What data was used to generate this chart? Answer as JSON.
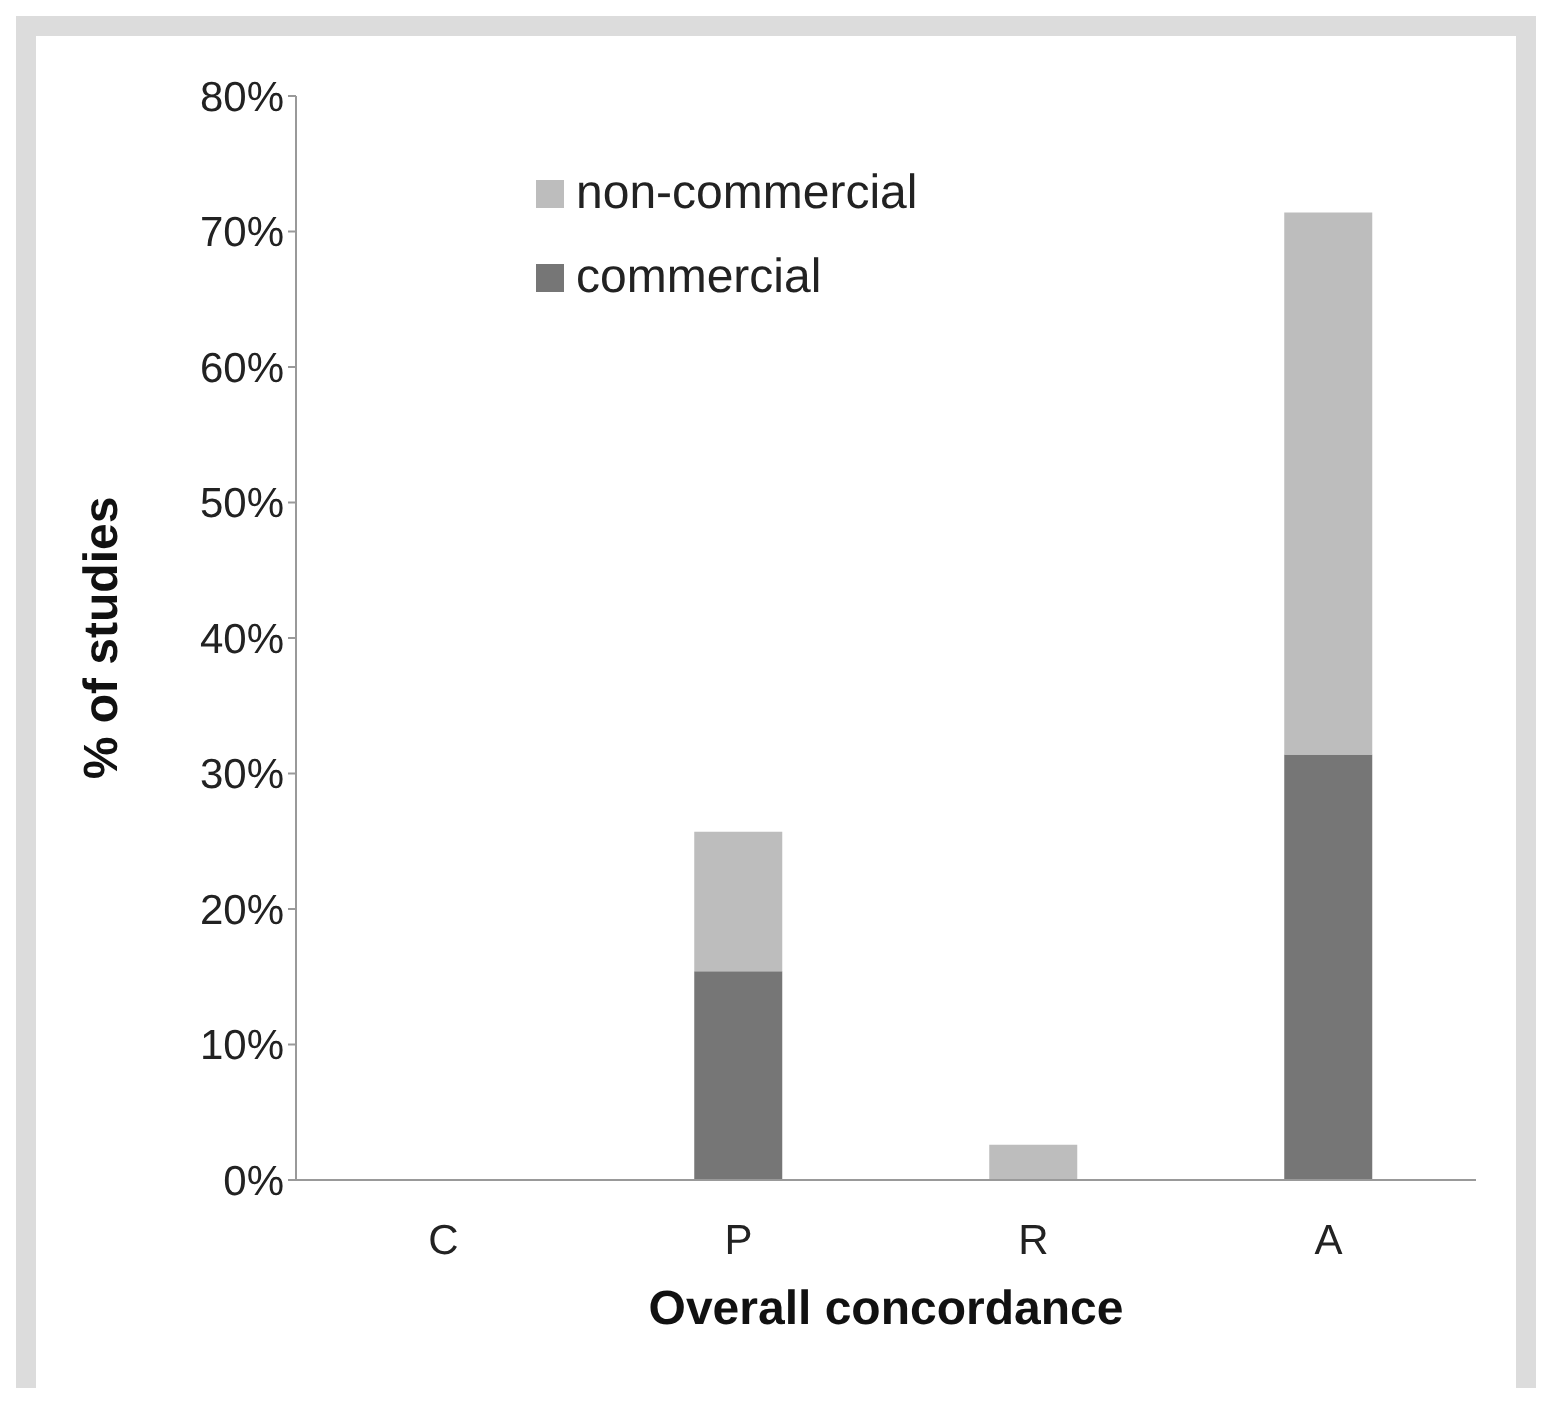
{
  "chart_data": {
    "type": "bar",
    "stacked": true,
    "xlabel": "Overall concordance",
    "ylabel": "% of studies",
    "categories": [
      "C",
      "P",
      "R",
      "A"
    ],
    "series": [
      {
        "name": "commercial",
        "color": "#767676",
        "values": [
          0,
          15.4,
          0,
          31.4
        ]
      },
      {
        "name": "non-commercial",
        "color": "#bdbdbd",
        "values": [
          0,
          10.3,
          2.6,
          40.0
        ]
      }
    ],
    "ylim": [
      0,
      80
    ],
    "yticks": [
      {
        "value": 0,
        "label": "0%"
      },
      {
        "value": 10,
        "label": "10%"
      },
      {
        "value": 20,
        "label": "20%"
      },
      {
        "value": 30,
        "label": "30%"
      },
      {
        "value": 40,
        "label": "40%"
      },
      {
        "value": 50,
        "label": "50%"
      },
      {
        "value": 60,
        "label": "60%"
      },
      {
        "value": 70,
        "label": "70%"
      },
      {
        "value": 80,
        "label": "80%"
      }
    ],
    "grid": false,
    "legend": "top left"
  }
}
